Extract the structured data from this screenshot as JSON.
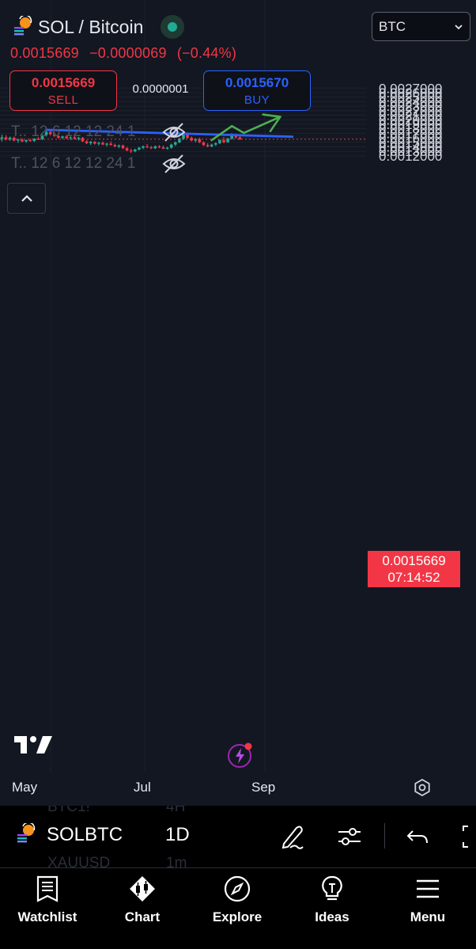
{
  "header": {
    "title": "SOL / Bitcoin",
    "currency": "BTC",
    "last_price": "0.0015669",
    "change": "−0.0000069",
    "change_pct": "(−0.44%)",
    "sell": {
      "price": "0.0015669",
      "label": "SELL"
    },
    "buy": {
      "price": "0.0015670",
      "label": "BUY"
    },
    "spread": "0.0000001"
  },
  "indicators": [
    {
      "text": "T.. 12 6 12 12 24 1"
    },
    {
      "text": "T.. 12 6 12 12 24 1"
    }
  ],
  "price_badge": {
    "price": "0.0015669",
    "countdown": "07:14:52"
  },
  "colors": {
    "up": "#22ab94",
    "down": "#f23645",
    "trendline": "#2962ff",
    "projection": "#4caf50",
    "background": "#131722"
  },
  "chart_data": {
    "type": "candlestick",
    "symbol": "SOLBTC",
    "interval": "1D",
    "y_ticks": [
      "0.0027000",
      "0.0026000",
      "0.0025000",
      "0.0024000",
      "0.0023000",
      "0.0022000",
      "0.0021000",
      "0.0020000",
      "0.0019000",
      "0.0018000",
      "0.0017000",
      "0.0016000",
      "0.0015000",
      "0.0014000",
      "0.0013000",
      "0.0012000"
    ],
    "y_range": [
      0.00116,
      0.00271
    ],
    "x_labels": [
      "May",
      "Jul",
      "Sep"
    ],
    "current_price": 0.0015669,
    "candles": [
      {
        "o": 0.00158,
        "h": 0.00167,
        "l": 0.00152,
        "c": 0.00161
      },
      {
        "o": 0.00161,
        "h": 0.00166,
        "l": 0.00154,
        "c": 0.00157
      },
      {
        "o": 0.00157,
        "h": 0.00163,
        "l": 0.00153,
        "c": 0.0016
      },
      {
        "o": 0.0016,
        "h": 0.00163,
        "l": 0.00152,
        "c": 0.00154
      },
      {
        "o": 0.00154,
        "h": 0.00158,
        "l": 0.00149,
        "c": 0.00156
      },
      {
        "o": 0.00156,
        "h": 0.00159,
        "l": 0.0015,
        "c": 0.00152
      },
      {
        "o": 0.00152,
        "h": 0.00156,
        "l": 0.00149,
        "c": 0.00155
      },
      {
        "o": 0.00155,
        "h": 0.00158,
        "l": 0.00151,
        "c": 0.00153
      },
      {
        "o": 0.00153,
        "h": 0.00159,
        "l": 0.00151,
        "c": 0.00158
      },
      {
        "o": 0.00158,
        "h": 0.00162,
        "l": 0.00155,
        "c": 0.00157
      },
      {
        "o": 0.00157,
        "h": 0.00168,
        "l": 0.00155,
        "c": 0.00166
      },
      {
        "o": 0.00166,
        "h": 0.00177,
        "l": 0.00163,
        "c": 0.00173
      },
      {
        "o": 0.00173,
        "h": 0.00177,
        "l": 0.00165,
        "c": 0.00168
      },
      {
        "o": 0.00168,
        "h": 0.00172,
        "l": 0.00162,
        "c": 0.00164
      },
      {
        "o": 0.00164,
        "h": 0.00167,
        "l": 0.00158,
        "c": 0.0016
      },
      {
        "o": 0.0016,
        "h": 0.00165,
        "l": 0.00157,
        "c": 0.00163
      },
      {
        "o": 0.00163,
        "h": 0.00166,
        "l": 0.00157,
        "c": 0.00159
      },
      {
        "o": 0.00159,
        "h": 0.00163,
        "l": 0.00155,
        "c": 0.00161
      },
      {
        "o": 0.00161,
        "h": 0.00164,
        "l": 0.00156,
        "c": 0.00158
      },
      {
        "o": 0.00158,
        "h": 0.00162,
        "l": 0.00154,
        "c": 0.0016
      },
      {
        "o": 0.0016,
        "h": 0.00162,
        "l": 0.00151,
        "c": 0.00152
      },
      {
        "o": 0.00152,
        "h": 0.00155,
        "l": 0.00146,
        "c": 0.00148
      },
      {
        "o": 0.00148,
        "h": 0.00153,
        "l": 0.00144,
        "c": 0.00151
      },
      {
        "o": 0.00151,
        "h": 0.00153,
        "l": 0.00145,
        "c": 0.00147
      },
      {
        "o": 0.00147,
        "h": 0.00151,
        "l": 0.00143,
        "c": 0.00149
      },
      {
        "o": 0.00149,
        "h": 0.00152,
        "l": 0.00144,
        "c": 0.00145
      },
      {
        "o": 0.00145,
        "h": 0.00149,
        "l": 0.00141,
        "c": 0.00147
      },
      {
        "o": 0.00147,
        "h": 0.00152,
        "l": 0.00143,
        "c": 0.00144
      },
      {
        "o": 0.00144,
        "h": 0.00147,
        "l": 0.00139,
        "c": 0.00141
      },
      {
        "o": 0.00141,
        "h": 0.00145,
        "l": 0.00137,
        "c": 0.00143
      },
      {
        "o": 0.00143,
        "h": 0.00145,
        "l": 0.00135,
        "c": 0.00137
      },
      {
        "o": 0.00137,
        "h": 0.0014,
        "l": 0.0013,
        "c": 0.00132
      },
      {
        "o": 0.00132,
        "h": 0.00136,
        "l": 0.00126,
        "c": 0.0013
      },
      {
        "o": 0.0013,
        "h": 0.00136,
        "l": 0.00128,
        "c": 0.00134
      },
      {
        "o": 0.00134,
        "h": 0.0014,
        "l": 0.00132,
        "c": 0.00138
      },
      {
        "o": 0.00138,
        "h": 0.00143,
        "l": 0.00135,
        "c": 0.00141
      },
      {
        "o": 0.00141,
        "h": 0.00146,
        "l": 0.00137,
        "c": 0.00139
      },
      {
        "o": 0.00139,
        "h": 0.00142,
        "l": 0.00135,
        "c": 0.00137
      },
      {
        "o": 0.00137,
        "h": 0.00143,
        "l": 0.00135,
        "c": 0.00141
      },
      {
        "o": 0.00141,
        "h": 0.00144,
        "l": 0.00137,
        "c": 0.00139
      },
      {
        "o": 0.00139,
        "h": 0.00143,
        "l": 0.00135,
        "c": 0.00136
      },
      {
        "o": 0.00136,
        "h": 0.0014,
        "l": 0.00134,
        "c": 0.00138
      },
      {
        "o": 0.00138,
        "h": 0.00147,
        "l": 0.00136,
        "c": 0.00145
      },
      {
        "o": 0.00145,
        "h": 0.00152,
        "l": 0.00142,
        "c": 0.0015
      },
      {
        "o": 0.0015,
        "h": 0.00161,
        "l": 0.00148,
        "c": 0.00158
      },
      {
        "o": 0.00158,
        "h": 0.00174,
        "l": 0.00155,
        "c": 0.0017
      },
      {
        "o": 0.0017,
        "h": 0.00172,
        "l": 0.00158,
        "c": 0.0016
      },
      {
        "o": 0.0016,
        "h": 0.00163,
        "l": 0.00152,
        "c": 0.00154
      },
      {
        "o": 0.00154,
        "h": 0.00159,
        "l": 0.0015,
        "c": 0.00157
      },
      {
        "o": 0.00157,
        "h": 0.0016,
        "l": 0.00148,
        "c": 0.0015
      },
      {
        "o": 0.0015,
        "h": 0.00152,
        "l": 0.00142,
        "c": 0.00144
      },
      {
        "o": 0.00144,
        "h": 0.00148,
        "l": 0.00139,
        "c": 0.00141
      },
      {
        "o": 0.00141,
        "h": 0.00147,
        "l": 0.00139,
        "c": 0.00145
      },
      {
        "o": 0.00145,
        "h": 0.0015,
        "l": 0.00142,
        "c": 0.00148
      },
      {
        "o": 0.00148,
        "h": 0.00157,
        "l": 0.00146,
        "c": 0.00155
      },
      {
        "o": 0.00155,
        "h": 0.00162,
        "l": 0.00148,
        "c": 0.0015
      },
      {
        "o": 0.0015,
        "h": 0.0016,
        "l": 0.00149,
        "c": 0.00158
      },
      {
        "o": 0.00158,
        "h": 0.0017,
        "l": 0.00156,
        "c": 0.00167
      },
      {
        "o": 0.00167,
        "h": 0.00169,
        "l": 0.00158,
        "c": 0.00161
      },
      {
        "o": 0.00161,
        "h": 0.00165,
        "l": 0.00155,
        "c": 0.00157
      }
    ],
    "trendline": {
      "from": {
        "candle": 11,
        "price": 0.001776
      },
      "to": {
        "candle": 72,
        "price": 0.001625
      }
    },
    "projection": [
      {
        "candle": 52,
        "price": 0.001548
      },
      {
        "candle": 57,
        "price": 0.00186
      },
      {
        "candle": 60,
        "price": 0.001707
      },
      {
        "candle": 69,
        "price": 0.002065
      }
    ]
  },
  "axis": {
    "x_labels": [
      "May",
      "Jul",
      "Sep"
    ]
  },
  "toolbar": {
    "symbol": "SOLBTC",
    "interval": "1D",
    "ghost_rows": [
      {
        "symbol": "BTC1!",
        "interval": "4H"
      },
      {
        "symbol": "XAUUSD",
        "interval": "1m"
      }
    ]
  },
  "nav": [
    {
      "label": "Watchlist",
      "icon": "watchlist-icon"
    },
    {
      "label": "Chart",
      "icon": "chart-icon"
    },
    {
      "label": "Explore",
      "icon": "compass-icon"
    },
    {
      "label": "Ideas",
      "icon": "lightbulb-icon"
    },
    {
      "label": "Menu",
      "icon": "hamburger-menu-icon"
    }
  ]
}
